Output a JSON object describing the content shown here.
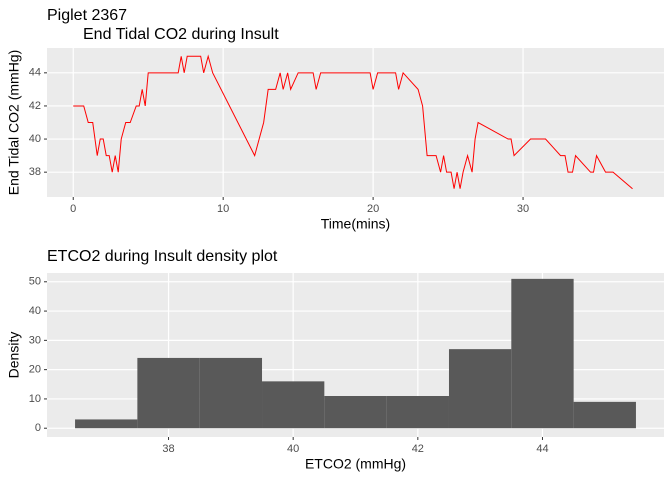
{
  "chart_data": [
    {
      "type": "line",
      "title": "Piglet 2367",
      "subtitle": "End Tidal CO2 during Insult",
      "x_label": "Time(mins)",
      "y_label": "End Tidal CO2 (mmHg)",
      "color": "#ff0000",
      "x": [
        0,
        0.7,
        1.0,
        1.3,
        1.6,
        1.8,
        2.0,
        2.2,
        2.4,
        2.6,
        2.8,
        3.0,
        3.2,
        3.5,
        3.8,
        4.2,
        4.4,
        4.6,
        4.8,
        5.0,
        5.2,
        5.5,
        7.0,
        7.2,
        7.4,
        7.6,
        8.0,
        8.5,
        8.7,
        9.0,
        9.3,
        12.1,
        12.4,
        12.7,
        13.0,
        13.5,
        13.8,
        14.0,
        14.3,
        14.5,
        15.0,
        16.0,
        16.2,
        16.5,
        19.8,
        20.0,
        20.3,
        21.5,
        21.7,
        22.0,
        23.0,
        23.3,
        23.6,
        23.9,
        24.2,
        24.5,
        24.7,
        24.9,
        25.2,
        25.4,
        25.6,
        25.8,
        26.0,
        26.3,
        26.6,
        26.8,
        27.0,
        29.0,
        29.2,
        29.4,
        30.5,
        31.5,
        32.0,
        32.5,
        32.8,
        33.0,
        33.3,
        33.5,
        34.5,
        34.7,
        34.9,
        35.5,
        36.0,
        37.3
      ],
      "values": [
        42,
        42,
        41,
        41,
        39,
        40,
        40,
        39,
        39,
        38,
        39,
        38,
        40,
        41,
        41,
        42,
        42,
        43,
        42,
        44,
        44,
        44,
        44,
        45,
        44,
        45,
        45,
        45,
        44,
        45,
        44,
        39,
        40,
        41,
        43,
        43,
        44,
        43,
        44,
        43,
        44,
        44,
        43,
        44,
        44,
        43,
        44,
        44,
        43,
        44,
        43,
        42,
        39,
        39,
        39,
        38,
        39,
        38,
        38,
        37,
        38,
        37,
        38,
        39,
        38,
        40,
        41,
        40,
        40,
        39,
        40,
        40,
        39.5,
        39,
        39,
        38,
        38,
        39,
        38,
        38,
        39,
        38,
        38,
        37
      ],
      "xlim": [
        -1.75,
        39.4
      ],
      "ylim": [
        36.5,
        45.5
      ],
      "xticks": [
        0,
        10,
        20,
        30
      ],
      "yticks": [
        38,
        40,
        42,
        44
      ],
      "grid": true
    },
    {
      "type": "histogram",
      "title": "ETCO2 during Insult density plot",
      "x_label": "ETCO2 (mmHg)",
      "y_label": "Density",
      "color": "#595959",
      "bins": [
        36.5,
        37.5,
        38.5,
        39.5,
        40.5,
        41.5,
        42.5,
        43.5,
        44.5,
        45.5
      ],
      "values": [
        3,
        24,
        24,
        16,
        11,
        11,
        27,
        51,
        9
      ],
      "xlim": [
        36.05,
        45.95
      ],
      "ylim": [
        -3,
        53
      ],
      "xticks": [
        38,
        40,
        42,
        44
      ],
      "yticks": [
        0,
        10,
        20,
        30,
        40,
        50
      ],
      "grid": true
    }
  ]
}
